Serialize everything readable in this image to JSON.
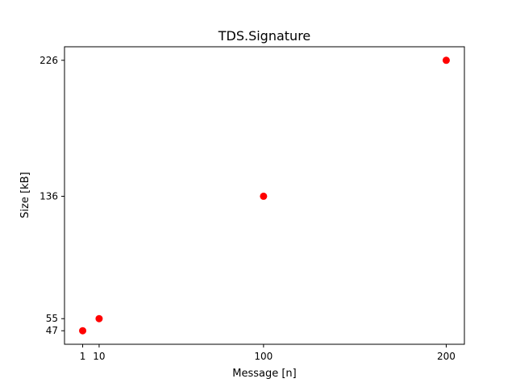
{
  "chart_data": {
    "type": "scatter",
    "title": "TDS.Signature",
    "xlabel": "Message [n]",
    "ylabel": "Size [kB]",
    "x": [
      1,
      10,
      100,
      200
    ],
    "y": [
      47,
      55,
      136,
      226
    ],
    "x_ticks": [
      1,
      10,
      100,
      200
    ],
    "y_ticks": [
      47,
      55,
      136,
      226
    ],
    "xlim": [
      -8.95,
      209.95
    ],
    "ylim": [
      38.05,
      234.95
    ],
    "grid": false,
    "legend": "none",
    "marker_color": "#ff0000"
  }
}
